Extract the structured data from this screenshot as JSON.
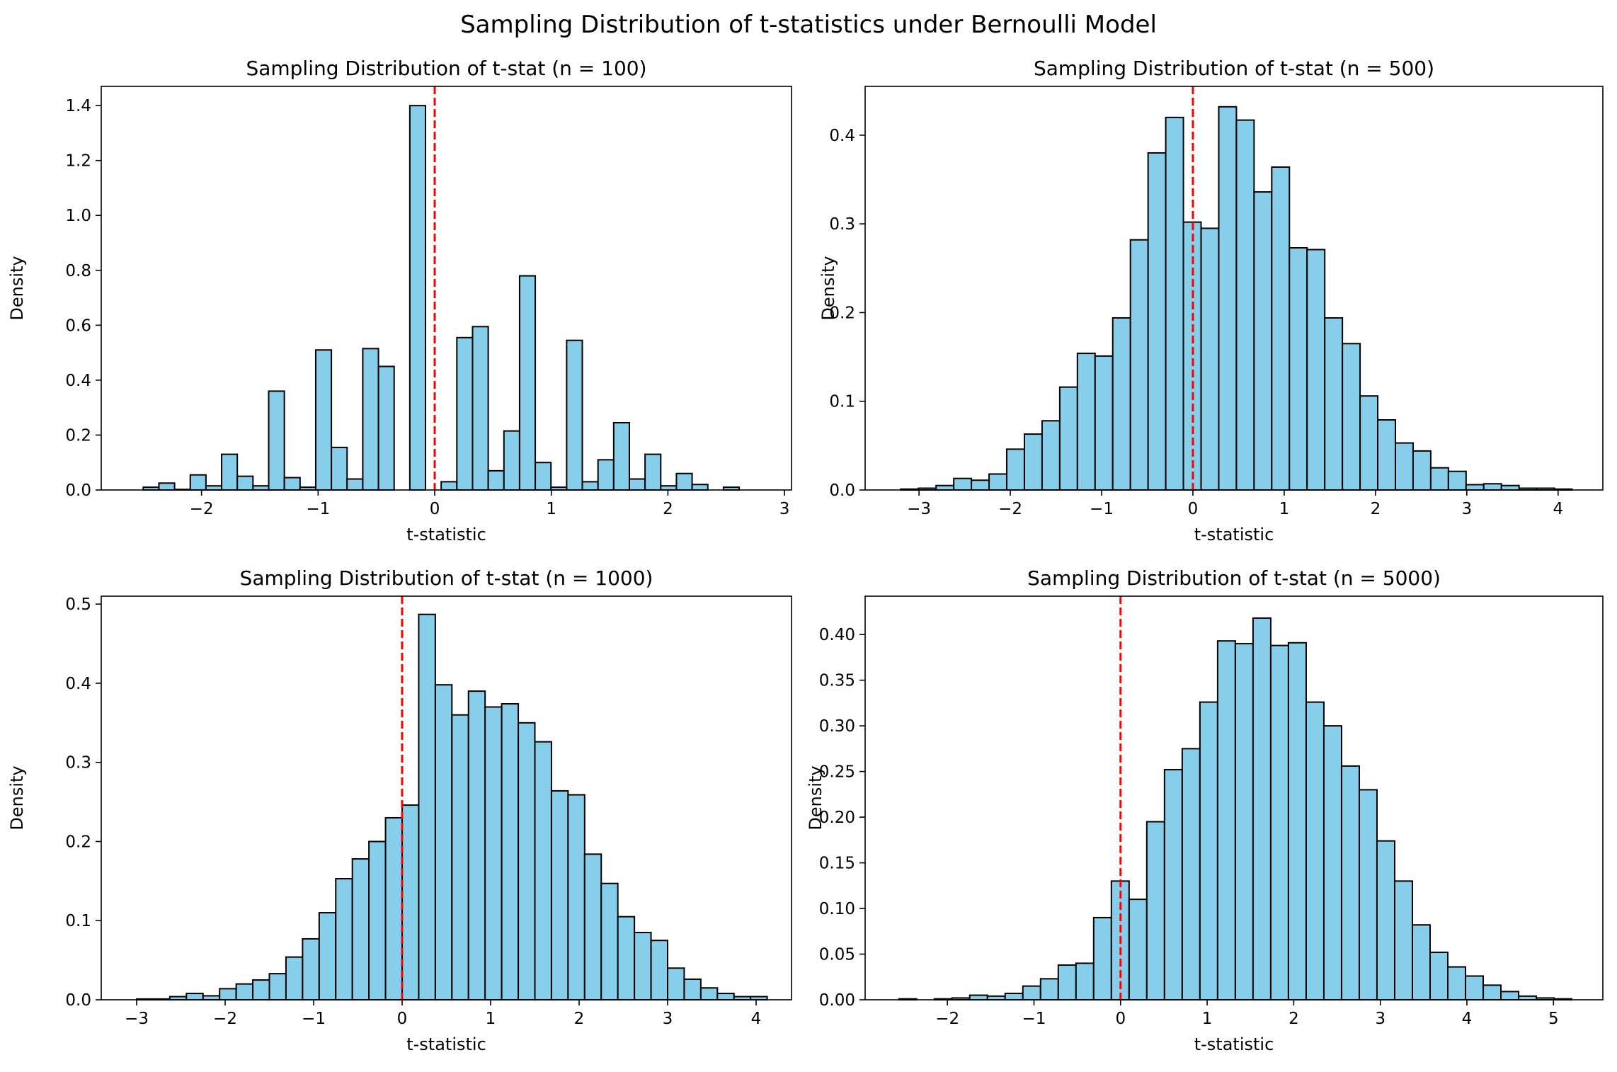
{
  "figure_title": "Sampling Distribution of t-statistics under Bernoulli Model",
  "colors": {
    "bar_fill": "#87ceeb",
    "bar_edge": "#000000",
    "ref_line": "#ff0000",
    "background": "#ffffff"
  },
  "chart_data": [
    {
      "type": "bar",
      "title": "Sampling Distribution of t-stat (n = 100)",
      "xlabel": "t-statistic",
      "ylabel": "Density",
      "xlim": [
        -2.86,
        3.06
      ],
      "ylim": [
        0,
        1.47
      ],
      "xticks": [
        -2,
        -1,
        0,
        1,
        2,
        3
      ],
      "yticks": [
        0.0,
        0.2,
        0.4,
        0.6,
        0.8,
        1.0,
        1.2,
        1.4
      ],
      "ytick_decimals": 1,
      "reference_line": {
        "x": 0,
        "style": "dashed"
      },
      "bin_start": -2.5,
      "bin_width": 0.1345,
      "values": [
        0.01,
        0.025,
        0.002,
        0.055,
        0.015,
        0.13,
        0.05,
        0.015,
        0.36,
        0.045,
        0.01,
        0.51,
        0.155,
        0.04,
        0.515,
        0.45,
        0,
        1.4,
        0,
        0.03,
        0.555,
        0.595,
        0.07,
        0.215,
        0.78,
        0.1,
        0.01,
        0.545,
        0.03,
        0.11,
        0.245,
        0.04,
        0.13,
        0.015,
        0.06,
        0.02,
        0,
        0.01
      ]
    },
    {
      "type": "bar",
      "title": "Sampling Distribution of t-stat (n = 500)",
      "xlabel": "t-statistic",
      "ylabel": "Density",
      "xlim": [
        -3.59,
        4.49
      ],
      "ylim": [
        0,
        0.455
      ],
      "xticks": [
        -3,
        -2,
        -1,
        0,
        1,
        2,
        3,
        4
      ],
      "yticks": [
        0.0,
        0.1,
        0.2,
        0.3,
        0.4
      ],
      "ytick_decimals": 1,
      "reference_line": {
        "x": 0,
        "style": "dashed"
      },
      "bin_start": -3.2,
      "bin_width": 0.1935,
      "values": [
        0.001,
        0.002,
        0.005,
        0.013,
        0.011,
        0.018,
        0.046,
        0.063,
        0.078,
        0.116,
        0.154,
        0.151,
        0.194,
        0.282,
        0.38,
        0.42,
        0.302,
        0.295,
        0.432,
        0.417,
        0.336,
        0.364,
        0.273,
        0.271,
        0.194,
        0.165,
        0.106,
        0.079,
        0.053,
        0.044,
        0.025,
        0.021,
        0.006,
        0.007,
        0.005,
        0.002,
        0.002,
        0.001
      ]
    },
    {
      "type": "bar",
      "title": "Sampling Distribution of t-stat (n = 1000)",
      "xlabel": "t-statistic",
      "ylabel": "Density",
      "xlim": [
        -3.4,
        4.4
      ],
      "ylim": [
        0,
        0.51
      ],
      "xticks": [
        -3,
        -2,
        -1,
        0,
        1,
        2,
        3,
        4
      ],
      "yticks": [
        0.0,
        0.1,
        0.2,
        0.3,
        0.4,
        0.5
      ],
      "ytick_decimals": 1,
      "reference_line": {
        "x": 0,
        "style": "dashed"
      },
      "bin_start": -3.0,
      "bin_width": 0.1875,
      "values": [
        0.001,
        0.001,
        0.004,
        0.008,
        0.005,
        0.014,
        0.02,
        0.025,
        0.033,
        0.054,
        0.077,
        0.11,
        0.153,
        0.178,
        0.2,
        0.23,
        0.246,
        0.487,
        0.398,
        0.36,
        0.39,
        0.37,
        0.374,
        0.35,
        0.326,
        0.264,
        0.259,
        0.184,
        0.147,
        0.105,
        0.085,
        0.075,
        0.04,
        0.026,
        0.015,
        0.008,
        0.004,
        0.004
      ]
    },
    {
      "type": "bar",
      "title": "Sampling Distribution of t-stat (n = 5000)",
      "xlabel": "t-statistic",
      "ylabel": "Density",
      "xlim": [
        -2.95,
        5.57
      ],
      "ylim": [
        0,
        0.442
      ],
      "xticks": [
        -2,
        -1,
        0,
        1,
        2,
        3,
        4,
        5
      ],
      "yticks": [
        0.0,
        0.05,
        0.1,
        0.15,
        0.2,
        0.25,
        0.3,
        0.35,
        0.4
      ],
      "ytick_decimals": 2,
      "reference_line": {
        "x": 0,
        "style": "dashed"
      },
      "bin_start": -2.56,
      "bin_width": 0.2045,
      "values": [
        0.001,
        0,
        0.001,
        0.002,
        0.005,
        0.004,
        0.007,
        0.015,
        0.023,
        0.038,
        0.04,
        0.09,
        0.13,
        0.11,
        0.195,
        0.252,
        0.275,
        0.326,
        0.393,
        0.39,
        0.418,
        0.388,
        0.391,
        0.326,
        0.3,
        0.256,
        0.23,
        0.174,
        0.13,
        0.082,
        0.052,
        0.036,
        0.026,
        0.016,
        0.009,
        0.004,
        0.002,
        0.001
      ]
    }
  ]
}
